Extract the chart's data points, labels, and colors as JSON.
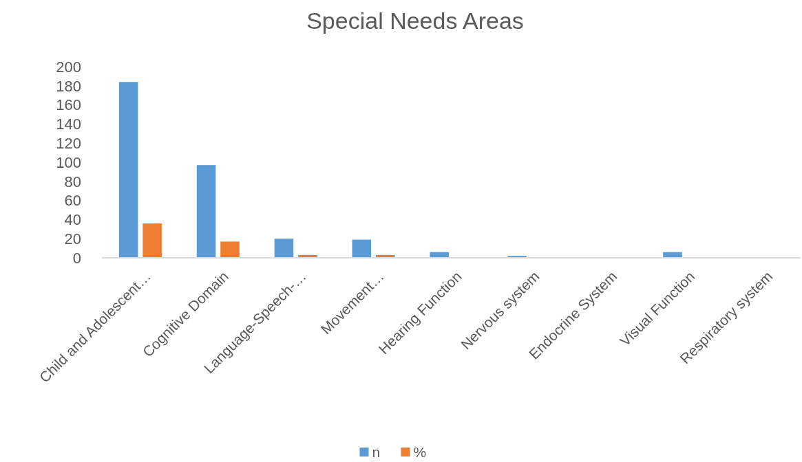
{
  "chart_data": {
    "type": "bar",
    "title": "Special Needs Areas",
    "categories": [
      "Child and Adolescent…",
      "Cognitive Domain",
      "Language-Speech-…",
      "Movement…",
      "Hearing Function",
      "Nervous system",
      "Endocrine System",
      "Visual Function",
      "Respiratory system"
    ],
    "series": [
      {
        "name": "n",
        "color": "#5b9bd5",
        "values": [
          184,
          97,
          20,
          19,
          6,
          2,
          0,
          6,
          0
        ]
      },
      {
        "name": "%",
        "color": "#ed7d31",
        "values": [
          36,
          17,
          3,
          3,
          0,
          0,
          0,
          0,
          0
        ]
      }
    ],
    "ylim": [
      0,
      200
    ],
    "yticks": [
      0,
      20,
      40,
      60,
      80,
      100,
      120,
      140,
      160,
      180,
      200
    ],
    "grid": false,
    "legend": "bottom"
  }
}
